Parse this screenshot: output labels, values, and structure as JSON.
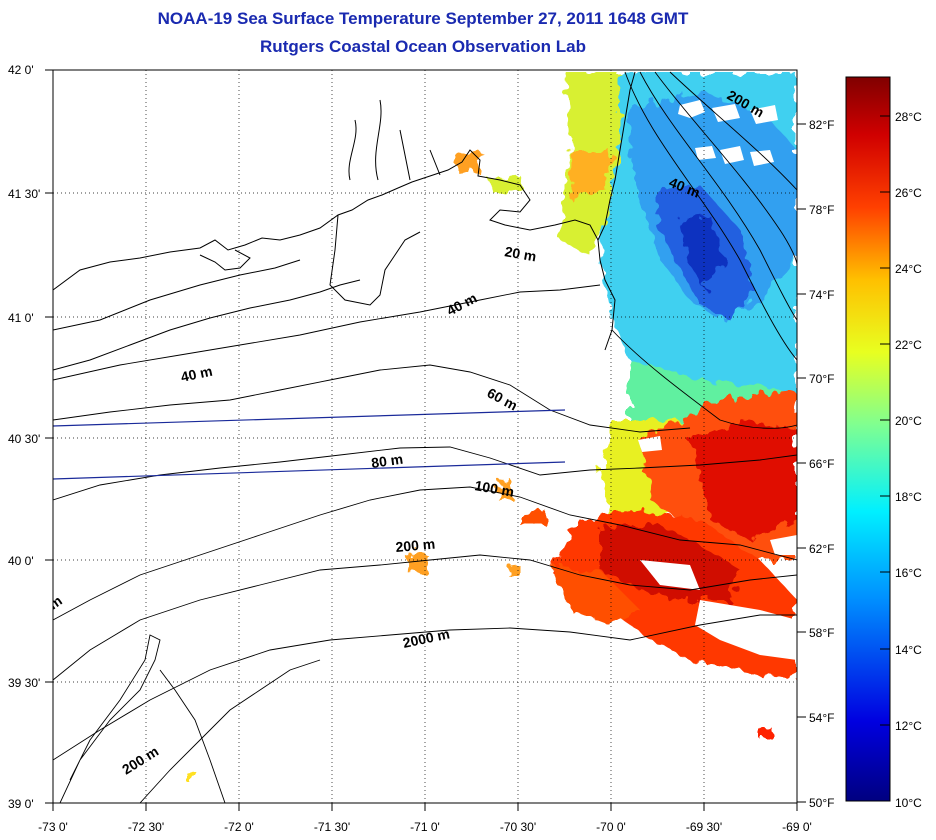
{
  "header": {
    "title": "NOAA-19 Sea Surface Temperature September 27, 2011 1648 GMT",
    "subtitle": "Rutgers Coastal Ocean Observation Lab"
  },
  "axes": {
    "lat_labels": [
      "42 0'",
      "41 30'",
      "41 0'",
      "40 30'",
      "40 0'",
      "39 30'",
      "39 0'"
    ],
    "lon_labels": [
      "-73 0'",
      "-72 30'",
      "-72 0'",
      "-71 30'",
      "-71 0'",
      "-70 30'",
      "-70 0'",
      "-69 30'",
      "-69 0'"
    ],
    "fahrenheit_labels": [
      "82°F",
      "78°F",
      "74°F",
      "70°F",
      "66°F",
      "62°F",
      "58°F",
      "54°F",
      "50°F"
    ]
  },
  "colorbar": {
    "labels": [
      "28°C",
      "26°C",
      "24°C",
      "22°C",
      "20°C",
      "18°C",
      "16°C",
      "14°C",
      "12°C",
      "10°C"
    ],
    "colors": [
      "#000080",
      "#0000ff",
      "#0080ff",
      "#00ffff",
      "#80ff80",
      "#ffff00",
      "#ff8000",
      "#ff0000",
      "#800000"
    ]
  },
  "depth_labels": [
    "200 m",
    "40 m",
    "20 m",
    "40 m",
    "40 m",
    "60 m",
    "80 m",
    "100 m",
    "200 m",
    "2000 m",
    "200 m",
    "m"
  ],
  "colors": {
    "title": "#1a2ab0",
    "land": "#ffffff",
    "clouds": "#ffffff",
    "tracks": "#1a2a9a"
  }
}
